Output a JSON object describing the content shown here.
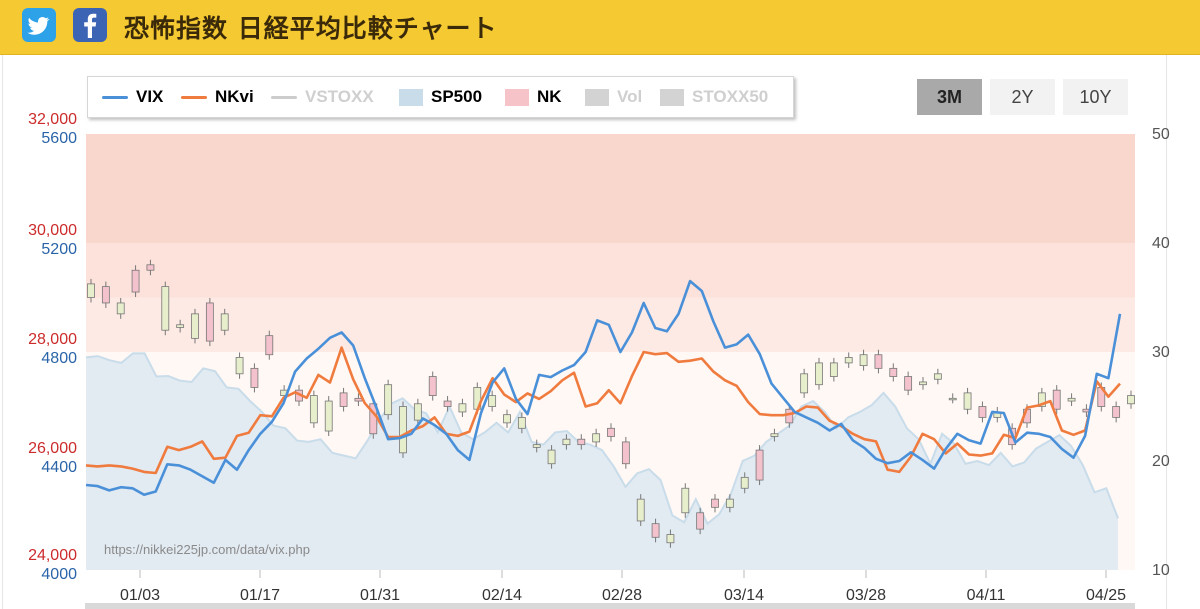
{
  "header": {
    "title": "恐怖指数 日経平均比較チャート",
    "twitter_icon": "twitter-icon",
    "facebook_icon": "facebook-icon",
    "colors": {
      "bar": "#f5c932",
      "twitter": "#2ea2e8",
      "facebook": "#3b64b4"
    }
  },
  "legend": [
    {
      "label": "VIX",
      "kind": "line",
      "color": "#4a90d9",
      "active": true
    },
    {
      "label": "NKvi",
      "kind": "line",
      "color": "#f07b3f",
      "active": true
    },
    {
      "label": "VSTOXX",
      "kind": "line",
      "color": "#cccccc",
      "active": false
    },
    {
      "label": "SP500",
      "kind": "area",
      "color": "#c8dcea",
      "active": true
    },
    {
      "label": "NK",
      "kind": "area",
      "color": "#f6c4c8",
      "active": true
    },
    {
      "label": "Vol",
      "kind": "area",
      "color": "#d3d3d3",
      "active": false
    },
    {
      "label": "STOXX50",
      "kind": "area",
      "color": "#d3d3d3",
      "active": false
    }
  ],
  "ranges": [
    {
      "label": "3M",
      "active": true
    },
    {
      "label": "2Y",
      "active": false
    },
    {
      "label": "10Y",
      "active": false
    }
  ],
  "watermark": "https://nikkei225jp.com/data/vix.php",
  "chart_data": {
    "type": "line",
    "axes": {
      "nk_left": {
        "ticks": [
          "32,000",
          "30,000",
          "28,000",
          "26,000",
          "24,000"
        ],
        "range": [
          24000,
          32000
        ],
        "color": "#cc2b2b"
      },
      "sp500_left": {
        "ticks": [
          "5600",
          "5200",
          "4800",
          "4400",
          "4000"
        ],
        "range": [
          4000,
          5600
        ],
        "color": "#2a64a8"
      },
      "vix_right": {
        "ticks": [
          "50",
          "40",
          "30",
          "20",
          "10"
        ],
        "range": [
          10,
          50
        ],
        "color": "#555555"
      },
      "x_ticks": [
        "01/03",
        "01/17",
        "01/31",
        "02/14",
        "02/28",
        "03/14",
        "03/28",
        "04/11",
        "04/25"
      ]
    },
    "zones": [
      {
        "from": 40,
        "to": 50,
        "color": "#fad7cc"
      },
      {
        "from": 35,
        "to": 40,
        "color": "#fce2da"
      },
      {
        "from": 30,
        "to": 35,
        "color": "#fdeae4"
      },
      {
        "from": 10,
        "to": 30,
        "color": "#fff8f5"
      }
    ],
    "series": [
      {
        "name": "VIX",
        "color": "#4a90d9",
        "axis": "right",
        "values": [
          17.8,
          17.7,
          17.3,
          17.6,
          17.5,
          16.9,
          17.2,
          19.7,
          19.6,
          19.2,
          18.6,
          18.0,
          20.1,
          19.2,
          21.0,
          22.5,
          23.6,
          25.3,
          28.2,
          29.4,
          30.3,
          31.3,
          31.8,
          30.6,
          27.6,
          24.9,
          22.0,
          22.1,
          22.5,
          23.9,
          23.3,
          22.5,
          21.0,
          20.1,
          24.4,
          27.2,
          28.5,
          25.7,
          24.3,
          27.9,
          27.7,
          28.3,
          28.8,
          30.0,
          32.9,
          32.5,
          30.0,
          31.8,
          34.5,
          32.2,
          31.9,
          33.5,
          36.5,
          35.6,
          32.8,
          30.4,
          30.7,
          31.6,
          29.8,
          27.1,
          25.8,
          24.5,
          24.0,
          23.5,
          22.8,
          23.4,
          21.9,
          21.2,
          20.2,
          19.8,
          20.0,
          20.8,
          20.1,
          19.3,
          21.1,
          22.5,
          21.9,
          21.6,
          24.5,
          24.4,
          21.7,
          22.6,
          22.5,
          22.2,
          21.1,
          20.3,
          22.3,
          28.0,
          27.6,
          33.5
        ]
      },
      {
        "name": "NKvi",
        "color": "#f07b3f",
        "axis": "right",
        "values": [
          19.6,
          19.5,
          19.6,
          19.5,
          19.3,
          19.0,
          18.9,
          21.3,
          21.0,
          21.3,
          21.8,
          20.2,
          20.3,
          22.3,
          22.6,
          24.2,
          24.1,
          25.8,
          26.3,
          25.8,
          27.9,
          27.2,
          30.4,
          27.5,
          25.3,
          24.1,
          22.2,
          22.2,
          22.8,
          23.2,
          24.0,
          22.5,
          22.3,
          22.7,
          25.5,
          27.6,
          26.1,
          25.4,
          26.2,
          25.7,
          26.4,
          27.4,
          28.1,
          25.0,
          25.3,
          26.5,
          25.3,
          27.8,
          30.0,
          29.8,
          29.9,
          29.1,
          29.2,
          29.4,
          28.2,
          27.4,
          26.9,
          25.4,
          24.3,
          24.2,
          24.2,
          24.4,
          25.0,
          24.9,
          23.7,
          23.2,
          22.5,
          22.0,
          21.8,
          19.2,
          19.0,
          20.4,
          22.5,
          22.0,
          20.7,
          21.6,
          20.6,
          20.5,
          20.7,
          22.4,
          22.1,
          24.9,
          25.1,
          25.5,
          22.8,
          22.4,
          22.8,
          27.3,
          25.9,
          27.1
        ]
      },
      {
        "name": "SP500",
        "color": "#c8dcea",
        "axis": "sp500",
        "values": [
          4780,
          4785,
          4770,
          4760,
          4795,
          4795,
          4710,
          4712,
          4695,
          4690,
          4740,
          4730,
          4670,
          4665,
          4620,
          4580,
          4530,
          4520,
          4475,
          4470,
          4480,
          4430,
          4420,
          4410,
          4475,
          4550,
          4610,
          4630,
          4590,
          4575,
          4505,
          4600,
          4505,
          4480,
          4505,
          4540,
          4505,
          4580,
          4470,
          4460,
          4505,
          4510,
          4470,
          4460,
          4440,
          4380,
          4305,
          4355,
          4370,
          4330,
          4200,
          4175,
          4260,
          4170,
          4205,
          4280,
          4400,
          4420,
          4470,
          4500,
          4530,
          4600,
          4620,
          4580,
          4520,
          4560,
          4580,
          4605,
          4650,
          4600,
          4520,
          4480,
          4390,
          4500,
          4465,
          4390,
          4400,
          4385,
          4430,
          4380,
          4395,
          4445,
          4470,
          4495,
          4455,
          4385,
          4285,
          4300,
          4190
        ]
      },
      {
        "name": "NK",
        "kind": "candlestick",
        "axis": "nk",
        "candles": [
          [
            29000,
            29250
          ],
          [
            29200,
            28900
          ],
          [
            28700,
            28900
          ],
          [
            29500,
            29100
          ],
          [
            29600,
            29500
          ],
          [
            28400,
            29200
          ],
          [
            28450,
            28500
          ],
          [
            28250,
            28700
          ],
          [
            28900,
            28200
          ],
          [
            28400,
            28700
          ],
          [
            27600,
            27900
          ],
          [
            27700,
            27350
          ],
          [
            28300,
            27950
          ],
          [
            27200,
            27300
          ],
          [
            27300,
            27100
          ],
          [
            26700,
            27200
          ],
          [
            26550,
            27100
          ],
          [
            27250,
            27000
          ],
          [
            27150,
            27100
          ],
          [
            27050,
            26500
          ],
          [
            26850,
            27400
          ],
          [
            26150,
            27000
          ],
          [
            26750,
            27050
          ],
          [
            27550,
            27200
          ],
          [
            27100,
            27000
          ],
          [
            26900,
            27050
          ],
          [
            26950,
            27350
          ],
          [
            27000,
            27200
          ],
          [
            26700,
            26850
          ],
          [
            26600,
            26800
          ],
          [
            26250,
            26300
          ],
          [
            25950,
            26200
          ],
          [
            26300,
            26400
          ],
          [
            26400,
            26300
          ],
          [
            26350,
            26500
          ],
          [
            26600,
            26450
          ],
          [
            26350,
            25950
          ],
          [
            24900,
            25300
          ],
          [
            24850,
            24600
          ],
          [
            24500,
            24650
          ],
          [
            25050,
            25500
          ],
          [
            25050,
            24750
          ],
          [
            25300,
            25150
          ],
          [
            25150,
            25300
          ],
          [
            25500,
            25700
          ],
          [
            26200,
            25650
          ],
          [
            26450,
            26500
          ],
          [
            26950,
            26700
          ],
          [
            27250,
            27600
          ],
          [
            27400,
            27800
          ],
          [
            27550,
            27800
          ],
          [
            27800,
            27900
          ],
          [
            27750,
            27950
          ],
          [
            27950,
            27700
          ],
          [
            27700,
            27550
          ],
          [
            27550,
            27300
          ],
          [
            27400,
            27450
          ],
          [
            27500,
            27600
          ],
          [
            27150,
            27150
          ],
          [
            26950,
            27250
          ],
          [
            27000,
            26800
          ],
          [
            26800,
            26900
          ],
          [
            26600,
            26300
          ],
          [
            26950,
            26700
          ],
          [
            27000,
            27250
          ],
          [
            27300,
            26950
          ],
          [
            27100,
            27150
          ],
          [
            26950,
            26900
          ],
          [
            27350,
            27000
          ],
          [
            27000,
            26800
          ],
          [
            27050,
            27200
          ]
        ]
      }
    ]
  }
}
